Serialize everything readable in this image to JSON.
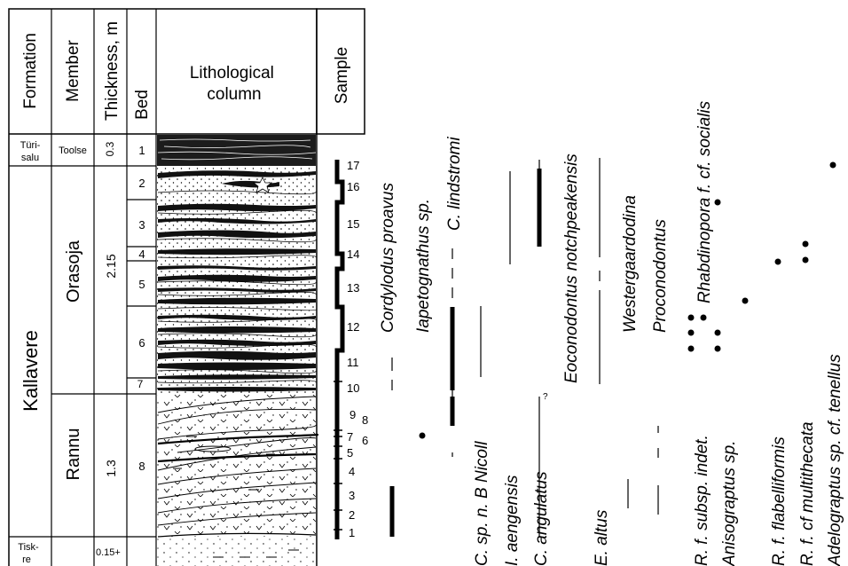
{
  "header": {
    "formation": "Formation",
    "member": "Member",
    "thickness": "Thickness, m",
    "bed": "Bed",
    "lithological_column": "Lithological column",
    "sample": "Sample"
  },
  "formations": [
    {
      "name": "Türi-salu",
      "line1": "Türi-",
      "line2": "salu"
    },
    {
      "name": "Kallavere"
    },
    {
      "name": "Tisk-re",
      "line1": "Tisk-",
      "line2": "re"
    }
  ],
  "members": [
    "Toolse",
    "Orasoja",
    "Rannu"
  ],
  "thicknesses": [
    "0.3",
    "2.15",
    "1.3",
    "0.15+"
  ],
  "beds": [
    "1",
    "2",
    "3",
    "4",
    "5",
    "6",
    "7",
    "8"
  ],
  "samples": [
    "17",
    "16",
    "15",
    "14",
    "13",
    "12",
    "11",
    "10",
    "9",
    "8",
    "7",
    "6",
    "5",
    "4",
    "3",
    "2",
    "1"
  ],
  "taxa": [
    "Cordylodus proavus",
    "Iapetognathus sp.",
    "C. lindstromi",
    "C. sp. n. B Nicoll",
    "I. aengensis",
    "C. angulatus",
    "Eoconodontus notchpeakensis",
    "E. altus",
    "Westergaardodina",
    "Proconodontus",
    "R. f. subsp. indet.",
    "Anisograptus sp.",
    "Rhabdinopora f. cf. socialis",
    "R. f. flabelliformis",
    "R. f. cf multithecata",
    "Adelograptus sp. cf. tenellus"
  ],
  "range_marks": {
    "query": "?"
  }
}
